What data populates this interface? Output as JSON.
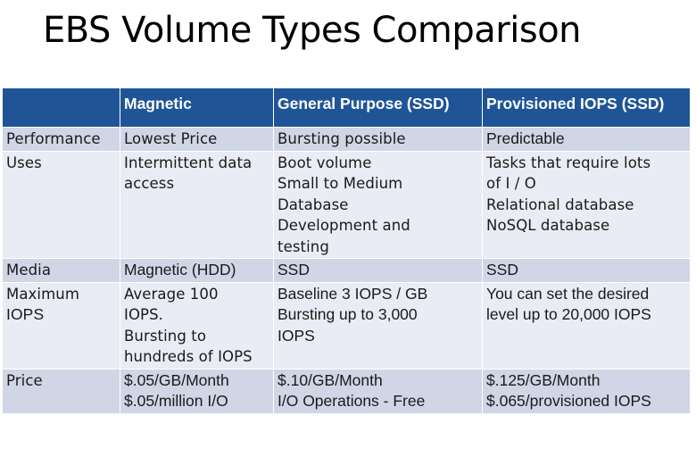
{
  "title": "EBS Volume Types Comparison",
  "table": {
    "headers": [
      "",
      "Magnetic",
      "General Purpose (SSD)",
      "Provisioned IOPS (SSD)"
    ],
    "rows": [
      {
        "label": "Performance",
        "cells": [
          [
            "Lowest Price"
          ],
          [
            "Bursting possible"
          ],
          [
            "Predictable"
          ]
        ]
      },
      {
        "label": "Uses",
        "cells": [
          [
            "Intermittent data",
            "access"
          ],
          [
            "Boot volume",
            "Small to Medium",
            "Database",
            "Development and",
            "testing"
          ],
          [
            "Tasks that require lots",
            "of I / O",
            "Relational database",
            "NoSQL database"
          ]
        ]
      },
      {
        "label": "Media",
        "cells": [
          [
            "Magnetic (HDD)"
          ],
          [
            "SSD"
          ],
          [
            "SSD"
          ]
        ]
      },
      {
        "label_lines": [
          "Maximum",
          "IOPS"
        ],
        "cells": [
          [
            "Average 100",
            "IOPS.",
            "Bursting to",
            "hundreds of IOPS"
          ],
          [
            "Baseline 3 IOPS / GB",
            "Bursting up to 3,000",
            "IOPS"
          ],
          [
            "You can set the desired",
            "level up to 20,000 IOPS"
          ]
        ]
      },
      {
        "label": "Price",
        "cells": [
          [
            "$.05/GB/Month",
            "$.05/million I/O"
          ],
          [
            "$.10/GB/Month",
            "I/O Operations - Free"
          ],
          [
            "$.125/GB/Month",
            "$.065/provisioned IOPS"
          ]
        ]
      }
    ]
  }
}
